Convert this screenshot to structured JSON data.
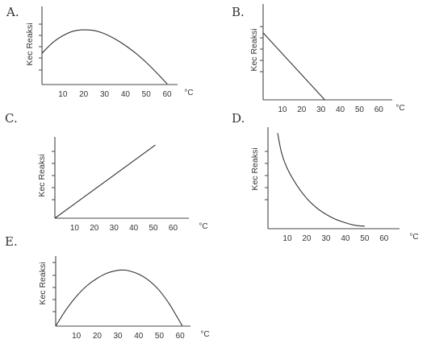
{
  "chart_data": [
    {
      "type": "line",
      "option_label": "A.",
      "ylabel": "Kec Reaksi",
      "unit": "°C",
      "x_ticks": [
        10,
        20,
        30,
        40,
        50,
        60
      ],
      "xlim": [
        0,
        65
      ],
      "ylim": [
        0,
        6
      ],
      "y_tick_count": 5,
      "series": [
        {
          "x": [
            0,
            5,
            10,
            15,
            20,
            25,
            30,
            35,
            40,
            45,
            50,
            55,
            60
          ],
          "y": [
            2.4,
            3.2,
            3.75,
            4.1,
            4.2,
            4.15,
            3.9,
            3.5,
            3.0,
            2.4,
            1.7,
            0.9,
            0.05
          ]
        }
      ]
    },
    {
      "type": "line",
      "option_label": "B.",
      "ylabel": "Kec Reaksi",
      "unit": "°C",
      "x_ticks": [
        10,
        20,
        30,
        40,
        50,
        60
      ],
      "xlim": [
        0,
        67
      ],
      "ylim": [
        0,
        8
      ],
      "y_tick_count": 5,
      "series": [
        {
          "x": [
            0,
            32
          ],
          "y": [
            5.6,
            0
          ]
        }
      ]
    },
    {
      "type": "line",
      "option_label": "C.",
      "ylabel": "Kec Reaksi",
      "unit": "°C",
      "x_ticks": [
        10,
        20,
        30,
        40,
        50,
        60
      ],
      "xlim": [
        0,
        68
      ],
      "ylim": [
        0,
        6
      ],
      "y_tick_count": 5,
      "series": [
        {
          "x": [
            0,
            51
          ],
          "y": [
            0,
            5.4
          ]
        }
      ]
    },
    {
      "type": "line",
      "option_label": "D.",
      "ylabel": "Kec Reaksi",
      "unit": "°C",
      "x_ticks": [
        10,
        20,
        30,
        40,
        50,
        60
      ],
      "xlim": [
        0,
        68
      ],
      "ylim": [
        0,
        6
      ],
      "y_tick_count": 5,
      "series": [
        {
          "x": [
            5,
            7,
            10,
            15,
            20,
            25,
            30,
            35,
            40,
            45,
            50
          ],
          "y": [
            5.65,
            4.5,
            3.55,
            2.55,
            1.8,
            1.25,
            0.85,
            0.55,
            0.35,
            0.2,
            0.15
          ]
        }
      ]
    },
    {
      "type": "line",
      "option_label": "E.",
      "ylabel": "Kec Reaksi",
      "unit": "°C",
      "x_ticks": [
        10,
        20,
        30,
        40,
        50,
        60
      ],
      "xlim": [
        0,
        65
      ],
      "ylim": [
        0,
        6
      ],
      "y_tick_count": 5,
      "series": [
        {
          "x": [
            0,
            5,
            10,
            15,
            20,
            25,
            30,
            33,
            35,
            40,
            45,
            50,
            55,
            58,
            61
          ],
          "y": [
            0,
            1.4,
            2.55,
            3.45,
            4.1,
            4.55,
            4.78,
            4.8,
            4.75,
            4.45,
            3.9,
            3.05,
            1.85,
            0.95,
            0.05
          ]
        }
      ]
    }
  ]
}
